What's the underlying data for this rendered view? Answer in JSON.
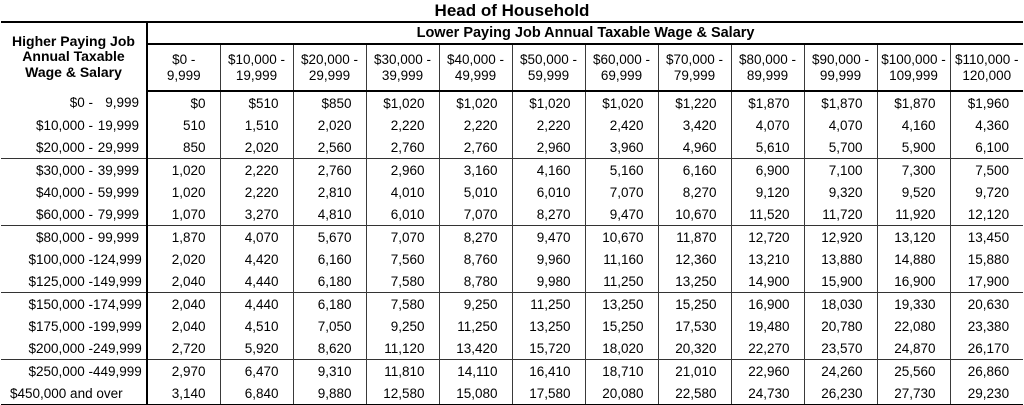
{
  "title": "Head of Household",
  "table": {
    "corner_header": {
      "line1": "Higher Paying Job",
      "line2": "Annual Taxable",
      "line3": "Wage & Salary"
    },
    "lower_header": "Lower Paying Job Annual Taxable Wage & Salary",
    "column_headers": [
      {
        "line1": "$0 -",
        "line2": "9,999"
      },
      {
        "line1": "$10,000 -",
        "line2": "19,999"
      },
      {
        "line1": "$20,000 -",
        "line2": "29,999"
      },
      {
        "line1": "$30,000 -",
        "line2": "39,999"
      },
      {
        "line1": "$40,000 -",
        "line2": "49,999"
      },
      {
        "line1": "$50,000 -",
        "line2": "59,999"
      },
      {
        "line1": "$60,000 -",
        "line2": "69,999"
      },
      {
        "line1": "$70,000 -",
        "line2": "79,999"
      },
      {
        "line1": "$80,000 -",
        "line2": "89,999"
      },
      {
        "line1": "$90,000 -",
        "line2": "99,999"
      },
      {
        "line1": "$100,000 -",
        "line2": "109,999"
      },
      {
        "line1": "$110,000 -",
        "line2": "120,000"
      }
    ],
    "rows": [
      {
        "from": "$0 -",
        "to": "9,999",
        "values": [
          "$0",
          "$510",
          "$850",
          "$1,020",
          "$1,020",
          "$1,020",
          "$1,020",
          "$1,220",
          "$1,870",
          "$1,870",
          "$1,870",
          "$1,960"
        ]
      },
      {
        "from": "$10,000 -",
        "to": "19,999",
        "values": [
          "510",
          "1,510",
          "2,020",
          "2,220",
          "2,220",
          "2,220",
          "2,420",
          "3,420",
          "4,070",
          "4,070",
          "4,160",
          "4,360"
        ]
      },
      {
        "from": "$20,000 -",
        "to": "29,999",
        "values": [
          "850",
          "2,020",
          "2,560",
          "2,760",
          "2,760",
          "2,960",
          "3,960",
          "4,960",
          "5,610",
          "5,700",
          "5,900",
          "6,100"
        ]
      },
      {
        "from": "$30,000 -",
        "to": "39,999",
        "values": [
          "1,020",
          "2,220",
          "2,760",
          "2,960",
          "3,160",
          "4,160",
          "5,160",
          "6,160",
          "6,900",
          "7,100",
          "7,300",
          "7,500"
        ]
      },
      {
        "from": "$40,000 -",
        "to": "59,999",
        "values": [
          "1,020",
          "2,220",
          "2,810",
          "4,010",
          "5,010",
          "6,010",
          "7,070",
          "8,270",
          "9,120",
          "9,320",
          "9,520",
          "9,720"
        ]
      },
      {
        "from": "$60,000 -",
        "to": "79,999",
        "values": [
          "1,070",
          "3,270",
          "4,810",
          "6,010",
          "7,070",
          "8,270",
          "9,470",
          "10,670",
          "11,520",
          "11,720",
          "11,920",
          "12,120"
        ]
      },
      {
        "from": "$80,000 -",
        "to": "99,999",
        "values": [
          "1,870",
          "4,070",
          "5,670",
          "7,070",
          "8,270",
          "9,470",
          "10,670",
          "11,870",
          "12,720",
          "12,920",
          "13,120",
          "13,450"
        ]
      },
      {
        "from": "$100,000 -",
        "to": "124,999",
        "values": [
          "2,020",
          "4,420",
          "6,160",
          "7,560",
          "8,760",
          "9,960",
          "11,160",
          "12,360",
          "13,210",
          "13,880",
          "14,880",
          "15,880"
        ]
      },
      {
        "from": "$125,000 -",
        "to": "149,999",
        "values": [
          "2,040",
          "4,440",
          "6,180",
          "7,580",
          "8,780",
          "9,980",
          "11,250",
          "13,250",
          "14,900",
          "15,900",
          "16,900",
          "17,900"
        ]
      },
      {
        "from": "$150,000 -",
        "to": "174,999",
        "values": [
          "2,040",
          "4,440",
          "6,180",
          "7,580",
          "9,250",
          "11,250",
          "13,250",
          "15,250",
          "16,900",
          "18,030",
          "19,330",
          "20,630"
        ]
      },
      {
        "from": "$175,000 -",
        "to": "199,999",
        "values": [
          "2,040",
          "4,510",
          "7,050",
          "9,250",
          "11,250",
          "13,250",
          "15,250",
          "17,530",
          "19,480",
          "20,780",
          "22,080",
          "23,380"
        ]
      },
      {
        "from": "$200,000 -",
        "to": "249,999",
        "values": [
          "2,720",
          "5,920",
          "8,620",
          "11,120",
          "13,420",
          "15,720",
          "18,020",
          "20,320",
          "22,270",
          "23,570",
          "24,870",
          "26,170"
        ]
      },
      {
        "from": "$250,000 -",
        "to": "449,999",
        "values": [
          "2,970",
          "6,470",
          "9,310",
          "11,810",
          "14,110",
          "16,410",
          "18,710",
          "21,010",
          "22,960",
          "24,260",
          "25,560",
          "26,860"
        ]
      },
      {
        "from": "$450,000 and over",
        "to": "",
        "values": [
          "3,140",
          "6,840",
          "9,880",
          "12,580",
          "15,080",
          "17,580",
          "20,080",
          "22,580",
          "24,730",
          "26,230",
          "27,730",
          "29,230"
        ]
      }
    ]
  }
}
